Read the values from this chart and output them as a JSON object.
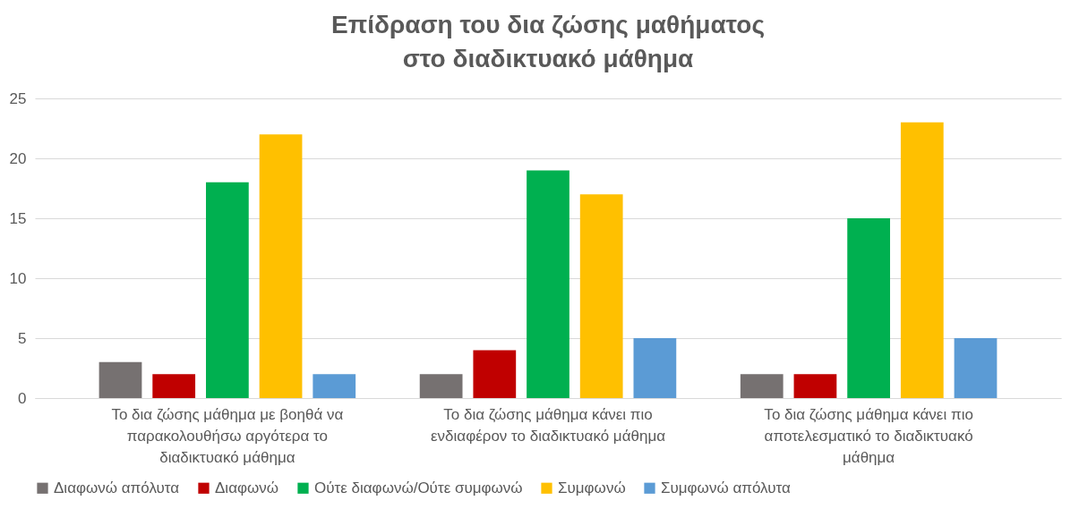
{
  "chart_data": {
    "type": "bar",
    "title": "Επίδραση του δια ζώσης μαθήματος στο διαδικτυακό μάθημα",
    "categories": [
      "Το δια ζώσης μάθημα με βοηθά να παρακολουθήσω αργότερα το διαδικτυακό μάθημα",
      "Το δια ζώσης μάθημα κάνει πιο ενδιαφέρον το διαδικτυακό μάθημα",
      "Το δια ζώσης μάθημα κάνει πιο αποτελεσματικό το διαδικτυακό μάθημα"
    ],
    "series": [
      {
        "name": "Διαφωνώ απόλυτα",
        "color": "#767171",
        "values": [
          3,
          2,
          2
        ]
      },
      {
        "name": "Διαφωνώ",
        "color": "#c00000",
        "values": [
          2,
          4,
          2
        ]
      },
      {
        "name": "Ούτε διαφωνώ/Ούτε συμφωνώ",
        "color": "#00b050",
        "values": [
          18,
          19,
          15
        ]
      },
      {
        "name": "Συμφωνώ",
        "color": "#ffc000",
        "values": [
          22,
          17,
          23
        ]
      },
      {
        "name": "Συμφωνώ απόλυτα",
        "color": "#5b9bd5",
        "values": [
          2,
          5,
          5
        ]
      }
    ],
    "ylim": [
      0,
      25
    ],
    "yticks": [
      0,
      5,
      10,
      15,
      20,
      25
    ],
    "grid": "y",
    "legend": "bottom"
  }
}
